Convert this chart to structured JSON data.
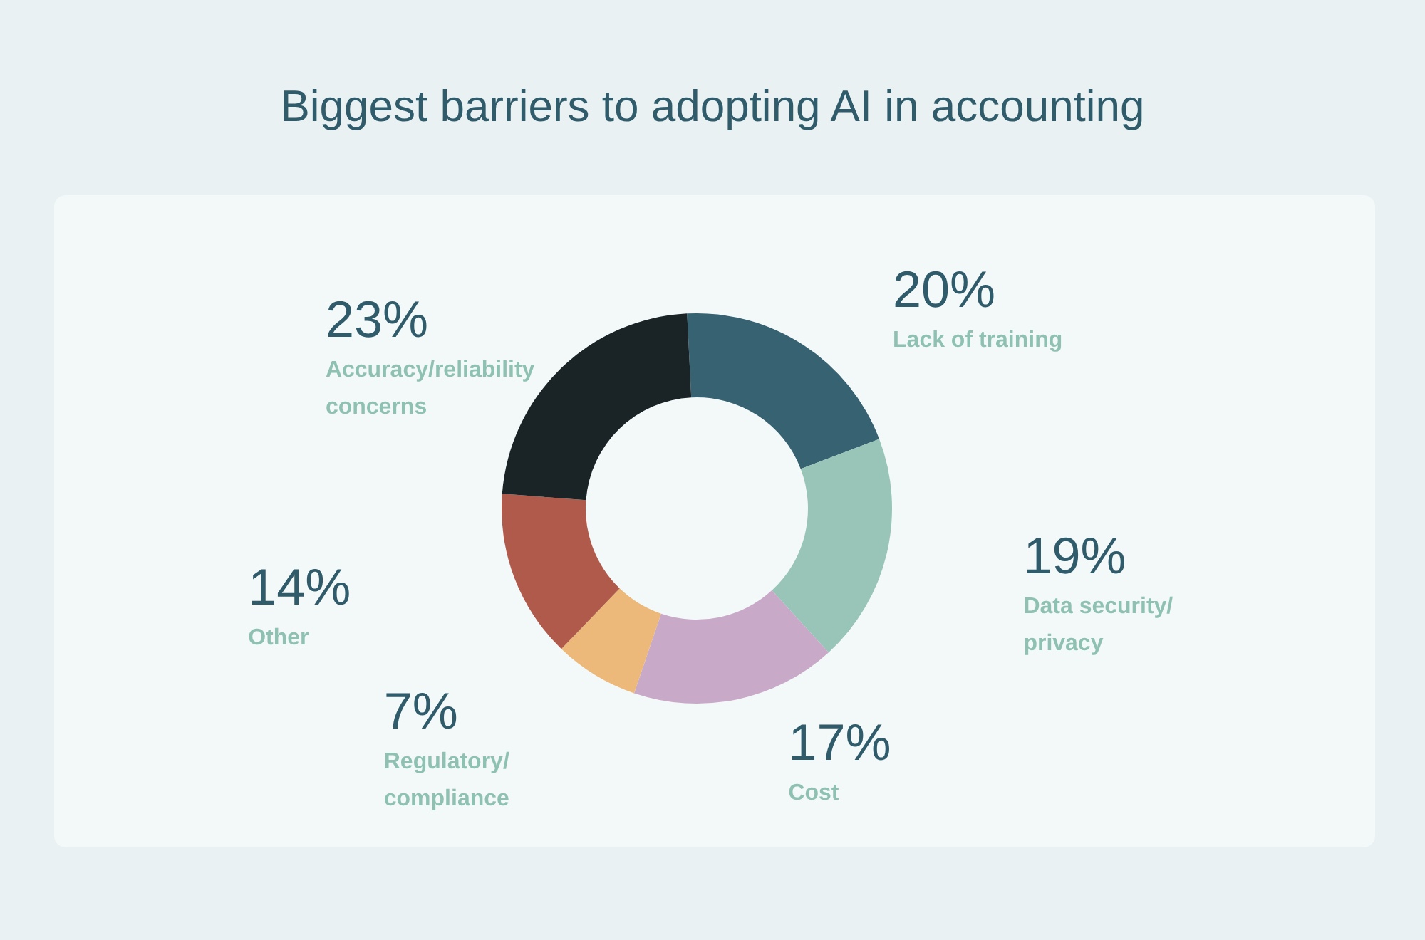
{
  "chart_data": {
    "type": "donut",
    "title": "Biggest barriers to adopting AI in accounting",
    "categories": [
      "Lack of training",
      "Data security/ privacy",
      "Cost",
      "Regulatory/ compliance",
      "Other",
      "Accuracy/reliability concerns"
    ],
    "values": [
      20,
      19,
      17,
      7,
      14,
      23
    ],
    "colors": [
      "#366272",
      "#99c4b8",
      "#c9a9c8",
      "#ecb97b",
      "#af5a4b",
      "#1a2426"
    ],
    "value_labels": [
      "20%",
      "19%",
      "17%",
      "7%",
      "14%",
      "23%"
    ]
  }
}
